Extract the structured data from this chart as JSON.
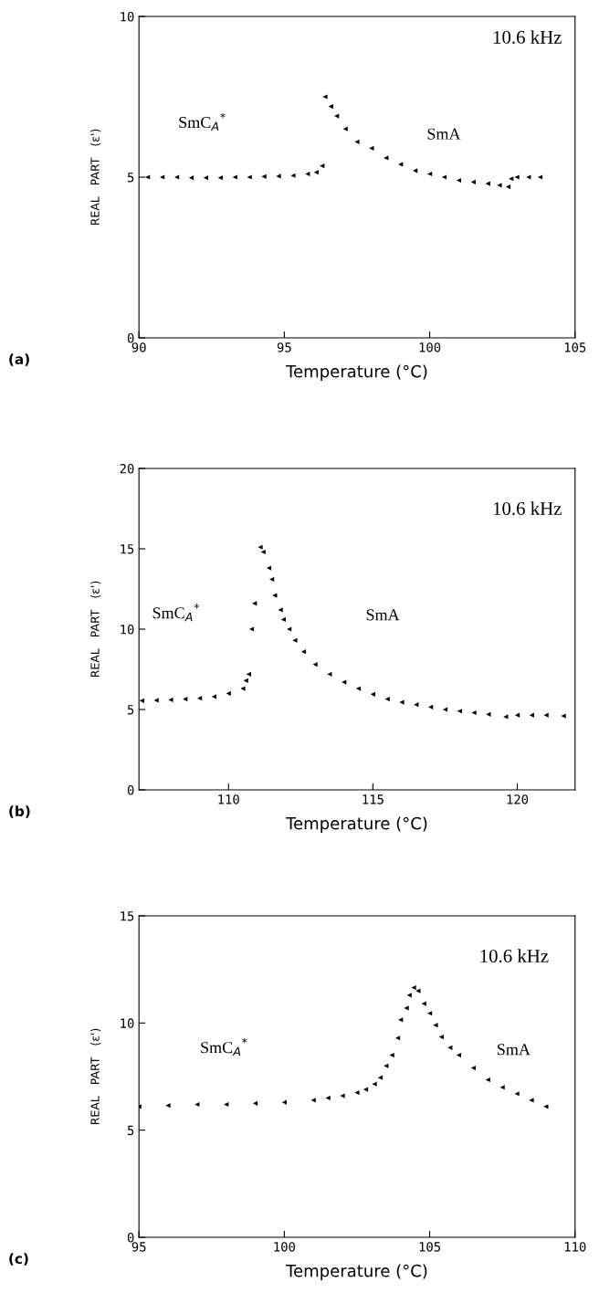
{
  "chart_data": [
    {
      "type": "scatter",
      "xlabel": "Temperature (°C)",
      "ylabel": "REAL   PART   (ε')",
      "marker": "triangle",
      "grid": false,
      "xlim": [
        90,
        105
      ],
      "ylim": [
        0,
        10
      ],
      "xticks": [
        90,
        95,
        100,
        105
      ],
      "yticks": [
        0,
        5,
        10
      ],
      "annotations": [
        "10.6 kHz",
        "SmC$_{A}$$^{*}$",
        "SmA",
        "(a)"
      ],
      "series": [
        {
          "color": "#000000",
          "x": [
            90.3,
            90.8,
            91.3,
            91.8,
            92.3,
            92.8,
            93.3,
            93.8,
            94.3,
            94.8,
            95.3,
            95.8,
            96.1,
            96.3,
            96.4,
            96.6,
            96.8,
            97.1,
            97.5,
            98.0,
            98.5,
            99.0,
            99.5,
            100.0,
            100.5,
            101.0,
            101.5,
            102.0,
            102.4,
            102.7,
            102.8,
            103.0,
            103.4,
            103.8
          ],
          "values": [
            5.0,
            5.0,
            5.0,
            4.98,
            4.98,
            4.98,
            5.0,
            5.0,
            5.02,
            5.03,
            5.05,
            5.1,
            5.15,
            5.35,
            7.5,
            7.2,
            6.9,
            6.5,
            6.1,
            5.9,
            5.6,
            5.4,
            5.2,
            5.1,
            5.0,
            4.9,
            4.85,
            4.8,
            4.75,
            4.7,
            4.95,
            5.0,
            5.0,
            5.0
          ]
        }
      ]
    },
    {
      "type": "scatter",
      "xlabel": "Temperature (°C)",
      "ylabel": "REAL   PART   (ε')",
      "marker": "triangle",
      "grid": false,
      "xlim": [
        106.9,
        122
      ],
      "ylim": [
        0,
        20
      ],
      "xticks": [
        110,
        115,
        120
      ],
      "yticks": [
        0,
        5,
        10,
        15,
        20
      ],
      "annotations": [
        "10.6 kHz",
        "SmC$_{A}$$^{*}$",
        "SmA",
        "(b)"
      ],
      "series": [
        {
          "color": "#000000",
          "x": [
            107.0,
            107.5,
            108.0,
            108.5,
            109.0,
            109.5,
            110.0,
            110.5,
            110.6,
            110.7,
            110.8,
            110.9,
            111.1,
            111.2,
            111.4,
            111.5,
            111.6,
            111.8,
            111.9,
            112.1,
            112.3,
            112.6,
            113.0,
            113.5,
            114.0,
            114.5,
            115.0,
            115.5,
            116.0,
            116.5,
            117.0,
            117.5,
            118.0,
            118.5,
            119.0,
            119.6,
            120.0,
            120.5,
            121.0,
            121.6
          ],
          "values": [
            5.55,
            5.57,
            5.6,
            5.65,
            5.7,
            5.8,
            6.0,
            6.3,
            6.8,
            7.2,
            10.0,
            11.6,
            15.1,
            14.8,
            13.8,
            13.1,
            12.1,
            11.2,
            10.6,
            10.0,
            9.3,
            8.6,
            7.8,
            7.2,
            6.7,
            6.3,
            5.95,
            5.65,
            5.45,
            5.3,
            5.15,
            5.0,
            4.9,
            4.8,
            4.7,
            4.55,
            4.65,
            4.65,
            4.65,
            4.6
          ]
        }
      ]
    },
    {
      "type": "scatter",
      "xlabel": "Temperature (°C)",
      "ylabel": "REAL   PART   (ε')",
      "marker": "triangle",
      "grid": false,
      "xlim": [
        95,
        110
      ],
      "ylim": [
        0,
        15
      ],
      "xticks": [
        95,
        100,
        105,
        110
      ],
      "yticks": [
        0,
        5,
        10,
        15
      ],
      "annotations": [
        "10.6 kHz",
        "SmC$_{A}$$^{*}$",
        "SmA",
        "(c)"
      ],
      "series": [
        {
          "color": "#000000",
          "x": [
            95.0,
            96.0,
            97.0,
            98.0,
            99.0,
            100.0,
            101.0,
            101.5,
            102.0,
            102.5,
            102.8,
            103.1,
            103.3,
            103.5,
            103.7,
            103.9,
            104.0,
            104.2,
            104.3,
            104.45,
            104.6,
            104.8,
            105.0,
            105.2,
            105.4,
            105.7,
            106.0,
            106.5,
            107.0,
            107.5,
            108.0,
            108.5,
            109.0
          ],
          "values": [
            6.1,
            6.15,
            6.2,
            6.2,
            6.25,
            6.3,
            6.4,
            6.5,
            6.6,
            6.75,
            6.9,
            7.15,
            7.45,
            8.0,
            8.5,
            9.3,
            10.15,
            10.7,
            11.3,
            11.65,
            11.5,
            10.9,
            10.45,
            9.9,
            9.35,
            8.85,
            8.5,
            7.9,
            7.35,
            7.0,
            6.7,
            6.4,
            6.1
          ]
        }
      ]
    }
  ]
}
